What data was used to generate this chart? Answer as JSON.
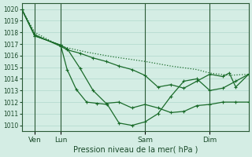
{
  "background_color": "#d4ede4",
  "grid_color": "#b0d8cc",
  "line_color": "#1a6b2a",
  "title": "Pression niveau de la mer( hPa )",
  "yticks": [
    1010,
    1011,
    1012,
    1013,
    1014,
    1015,
    1016,
    1017,
    1018,
    1019,
    1020
  ],
  "ylim": [
    1009.5,
    1020.5
  ],
  "day_labels": [
    "Ven",
    "Lun",
    "Sam",
    "Dim"
  ],
  "day_positions": [
    10,
    30,
    95,
    145
  ],
  "xlim": [
    0,
    175
  ],
  "series1_dotted": {
    "x": [
      0,
      10,
      30,
      50,
      70,
      95,
      115,
      135,
      145,
      160,
      175
    ],
    "y": [
      1020,
      1018.0,
      1016.8,
      1016.3,
      1015.9,
      1015.5,
      1015.1,
      1014.8,
      1014.5,
      1014.3,
      1014.4
    ]
  },
  "series2": {
    "x": [
      0,
      10,
      30,
      35,
      45,
      55,
      65,
      75,
      85,
      95,
      105,
      115,
      125,
      135,
      145,
      155,
      160,
      165,
      175
    ],
    "y": [
      1020,
      1017.8,
      1016.8,
      1016.5,
      1016.2,
      1015.8,
      1015.5,
      1015.1,
      1014.8,
      1014.3,
      1013.3,
      1013.5,
      1013.2,
      1013.8,
      1014.4,
      1014.2,
      1014.5,
      1013.3,
      1014.4
    ]
  },
  "series3": {
    "x": [
      0,
      10,
      30,
      35,
      45,
      55,
      65,
      75,
      85,
      95,
      105,
      115,
      125,
      135,
      145,
      155,
      165,
      175
    ],
    "y": [
      1020,
      1017.7,
      1016.9,
      1016.6,
      1014.9,
      1013.0,
      1011.9,
      1012.0,
      1011.5,
      1011.8,
      1011.5,
      1011.1,
      1011.2,
      1011.7,
      1011.8,
      1012.0,
      1012.0,
      1012.0
    ]
  },
  "series4": {
    "x": [
      0,
      10,
      30,
      35,
      42,
      50,
      58,
      66,
      75,
      85,
      95,
      105,
      115,
      125,
      135,
      145,
      155,
      165,
      175
    ],
    "y": [
      1020,
      1017.7,
      1016.9,
      1014.8,
      1013.1,
      1012.0,
      1011.9,
      1011.8,
      1010.2,
      1010.0,
      1010.3,
      1011.0,
      1012.5,
      1013.8,
      1014.0,
      1013.0,
      1013.2,
      1013.8,
      1014.4
    ]
  }
}
